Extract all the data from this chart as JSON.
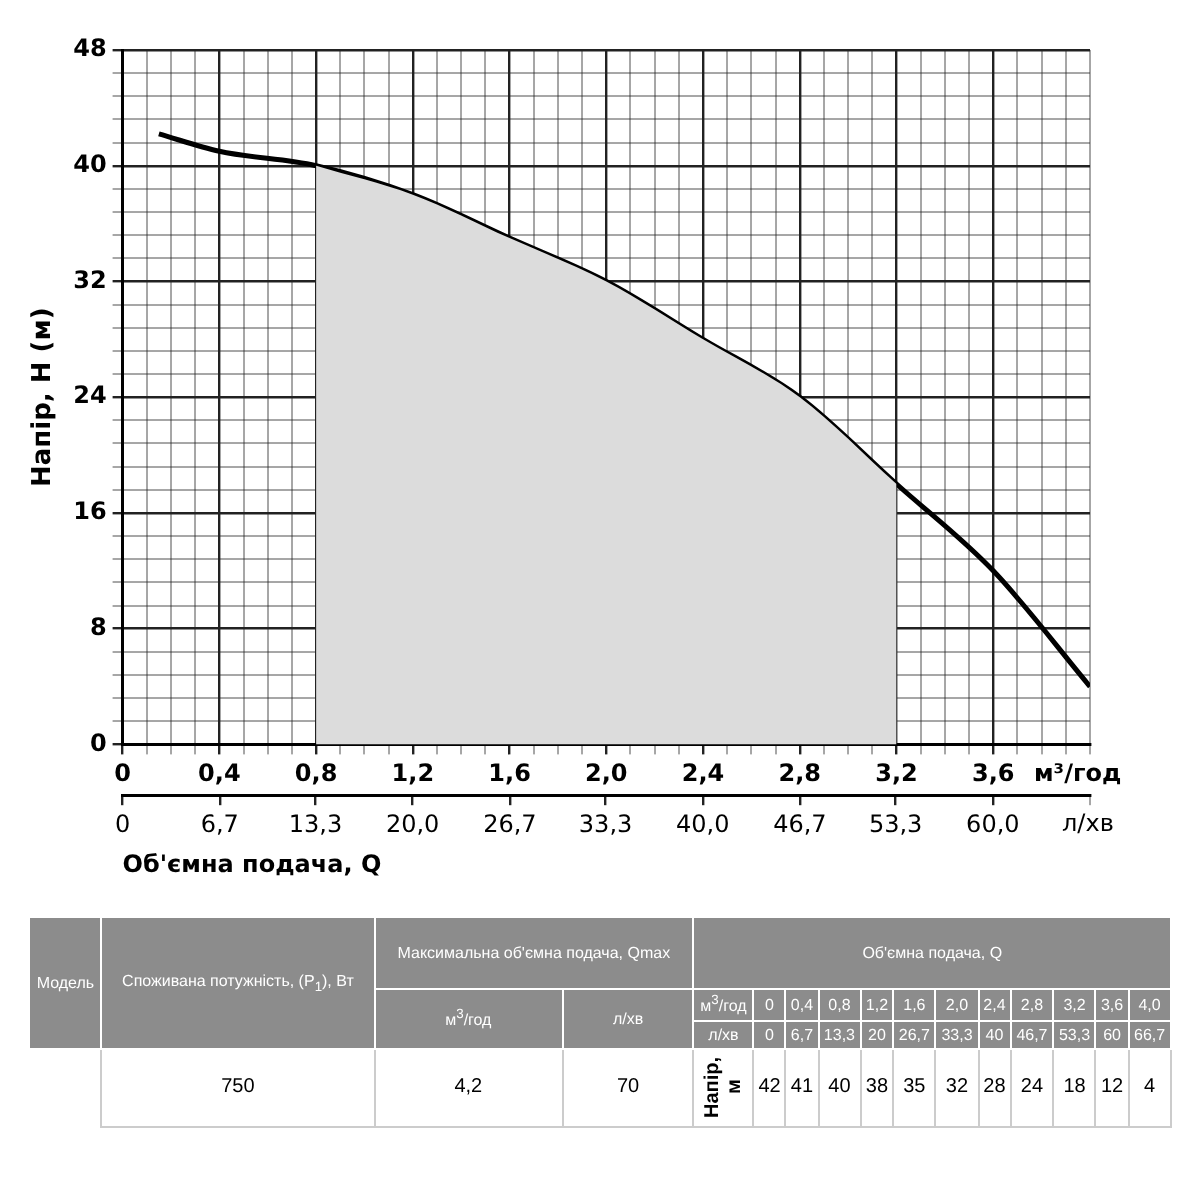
{
  "chart_data": {
    "type": "line",
    "xlabel": "м³/год",
    "x2label": "л/хв",
    "ylabel": "Напір, H (м)",
    "x": [
      0.15,
      0.4,
      0.8,
      1.2,
      1.6,
      2.0,
      2.4,
      2.8,
      3.2,
      3.6,
      4.0
    ],
    "series": [
      {
        "type": "area",
        "color": "#dcdcdc",
        "x": [
          0.8,
          1.2,
          1.6,
          2.0,
          2.4,
          2.8,
          3.2
        ],
        "values": [
          40,
          38,
          35,
          32,
          28,
          24,
          18
        ]
      },
      {
        "color": "#000000",
        "values": [
          42.2,
          41,
          40,
          38,
          35,
          32,
          28,
          24,
          18,
          12,
          4
        ]
      }
    ],
    "xlim": [
      0,
      4.0
    ],
    "ylim": [
      0,
      48
    ],
    "x2lim": [
      0,
      66.7
    ],
    "xticks": [
      0,
      {
        "value": 0.1,
        "label": null
      },
      {
        "value": 0.2,
        "label": null
      },
      {
        "value": 0.3,
        "label": null
      },
      {
        "value": 0.4,
        "label": "0,4"
      },
      {
        "value": 0.5,
        "label": null
      },
      {
        "value": 0.6,
        "label": null
      },
      {
        "value": 0.7,
        "label": null
      },
      {
        "value": 0.8,
        "label": "0,8"
      },
      {
        "value": 0.9,
        "label": null
      },
      {
        "value": 1.0,
        "label": null
      },
      {
        "value": 1.1,
        "label": null
      },
      {
        "value": 1.2,
        "label": "1,2"
      },
      {
        "value": 1.3,
        "label": null
      },
      {
        "value": 1.4,
        "label": null
      },
      {
        "value": 1.5,
        "label": null
      },
      {
        "value": 1.6,
        "label": "1,6"
      },
      {
        "value": 1.7,
        "label": null
      },
      {
        "value": 1.8,
        "label": null
      },
      {
        "value": 1.9,
        "label": null
      },
      {
        "value": 2.0,
        "label": "2,0"
      },
      {
        "value": 2.1,
        "label": null
      },
      {
        "value": 2.2,
        "label": null
      },
      {
        "value": 2.3,
        "label": null
      },
      {
        "value": 2.4,
        "label": "2,4"
      },
      {
        "value": 2.5,
        "label": null
      },
      {
        "value": 2.6,
        "label": null
      },
      {
        "value": 2.7,
        "label": null
      },
      {
        "value": 2.8,
        "label": "2,8"
      },
      {
        "value": 2.9,
        "label": null
      },
      {
        "value": 3.0,
        "label": null
      },
      {
        "value": 3.1,
        "label": null
      },
      {
        "value": 3.2,
        "label": "3,2"
      },
      {
        "value": 3.3,
        "label": null
      },
      {
        "value": 3.4,
        "label": null
      },
      {
        "value": 3.5,
        "label": null
      },
      {
        "value": 3.6,
        "label": "3,6"
      },
      {
        "value": 3.7,
        "label": null
      },
      {
        "value": 3.8,
        "label": null
      },
      {
        "value": 3.9,
        "label": null
      },
      {
        "value": 4.0,
        "label": null
      }
    ],
    "yticks": [
      0,
      {
        "value": 1.6,
        "label": null
      },
      {
        "value": 3.2,
        "label": null
      },
      {
        "value": 4.8,
        "label": null
      },
      {
        "value": 6.4,
        "label": null
      },
      8,
      {
        "value": 9.6,
        "label": null
      },
      {
        "value": 11.2,
        "label": null
      },
      {
        "value": 12.8,
        "label": null
      },
      {
        "value": 14.4,
        "label": null
      },
      16,
      {
        "value": 17.6,
        "label": null
      },
      {
        "value": 19.2,
        "label": null
      },
      {
        "value": 20.8,
        "label": null
      },
      {
        "value": 22.4,
        "label": null
      },
      24,
      {
        "value": 25.6,
        "label": null
      },
      {
        "value": 27.2,
        "label": null
      },
      {
        "value": 28.8,
        "label": null
      },
      {
        "value": 30.4,
        "label": null
      },
      32,
      {
        "value": 33.6,
        "label": null
      },
      {
        "value": 35.2,
        "label": null
      },
      {
        "value": 36.8,
        "label": null
      },
      {
        "value": 38.4,
        "label": null
      },
      40,
      {
        "value": 41.6,
        "label": null
      },
      {
        "value": 43.2,
        "label": null
      },
      {
        "value": 44.8,
        "label": null
      },
      {
        "value": 46.4,
        "label": null
      },
      48
    ],
    "x2ticks": [
      0,
      {
        "value": 6.7,
        "label": "6,7"
      },
      {
        "value": 13.3,
        "label": "13,3"
      },
      {
        "value": 20.0,
        "label": "20,0"
      },
      {
        "value": 26.7,
        "label": "26,7"
      },
      {
        "value": 33.3,
        "label": "33,3"
      },
      {
        "value": 40.0,
        "label": "40,0"
      },
      {
        "value": 46.7,
        "label": "46,7"
      },
      {
        "value": 53.3,
        "label": "53,3"
      },
      {
        "value": 60.0,
        "label": "60,0"
      },
      {
        "value": 66.7,
        "label": null
      }
    ],
    "grid": true,
    "legend": false,
    "marker": "none",
    "line_style": "solid",
    "annotations": [
      "Об'ємна подача, Q",
      "Модель",
      "Споживана потужність, (P$_{1}$), Вт",
      "Максимальна об'ємна подача, Qmax",
      "Об'ємна подача, Q",
      "м$^{3}$/год",
      "л/хв",
      "м$^{3}$/год",
      "0",
      "0,4",
      "0,8",
      "1,2",
      "1,6",
      "2,0",
      "2,4",
      "2,8",
      "3,2",
      "3,6",
      "4,0",
      "л/хв",
      "0",
      "6,7",
      "13,3",
      "20",
      "26,7",
      "33,3",
      "40",
      "46,7",
      "53,3",
      "60",
      "66,7",
      "750",
      "4,2",
      "70",
      "Напір, м",
      "42",
      "41",
      "40",
      "38",
      "35",
      "32",
      "28",
      "24",
      "18",
      "12",
      "4"
    ]
  }
}
